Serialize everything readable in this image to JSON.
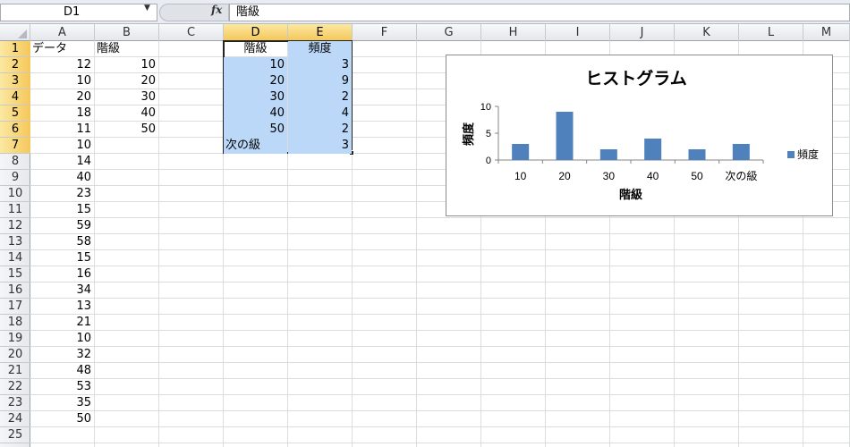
{
  "formula_bar": {
    "name_box": "D1",
    "fx_label": "fx",
    "formula": "階級"
  },
  "columns": [
    "A",
    "B",
    "C",
    "D",
    "E",
    "F",
    "G",
    "H",
    "I",
    "J",
    "K",
    "L",
    "M"
  ],
  "rows": [
    "1",
    "2",
    "3",
    "4",
    "5",
    "6",
    "7",
    "8",
    "9",
    "10",
    "11",
    "12",
    "13",
    "14",
    "15",
    "16",
    "17",
    "18",
    "19",
    "20",
    "21",
    "22",
    "23",
    "24",
    "25"
  ],
  "sheet": {
    "a_header": "データ",
    "b_header": "階級",
    "data_values": [
      "12",
      "10",
      "20",
      "18",
      "11",
      "10",
      "14",
      "40",
      "23",
      "15",
      "59",
      "58",
      "15",
      "16",
      "34",
      "13",
      "21",
      "10",
      "32",
      "48",
      "53",
      "35",
      "50"
    ],
    "bins": [
      "10",
      "20",
      "30",
      "40",
      "50"
    ],
    "freq_table": {
      "header_class": "階級",
      "header_freq": "頻度",
      "rows": [
        {
          "cls": "10",
          "freq": "3"
        },
        {
          "cls": "20",
          "freq": "9"
        },
        {
          "cls": "30",
          "freq": "2"
        },
        {
          "cls": "40",
          "freq": "4"
        },
        {
          "cls": "50",
          "freq": "2"
        },
        {
          "cls": "次の級",
          "freq": "3"
        }
      ]
    }
  },
  "chart_data": {
    "type": "bar",
    "title": "ヒストグラム",
    "xlabel": "階級",
    "ylabel": "頻度",
    "categories": [
      "10",
      "20",
      "30",
      "40",
      "50",
      "次の級"
    ],
    "series": [
      {
        "name": "頻度",
        "values": [
          3,
          9,
          2,
          4,
          2,
          3
        ],
        "color": "#4f81bd"
      }
    ],
    "ylim": [
      0,
      10
    ],
    "yticks": [
      0,
      5,
      10
    ],
    "grid": false,
    "legend": "right"
  }
}
